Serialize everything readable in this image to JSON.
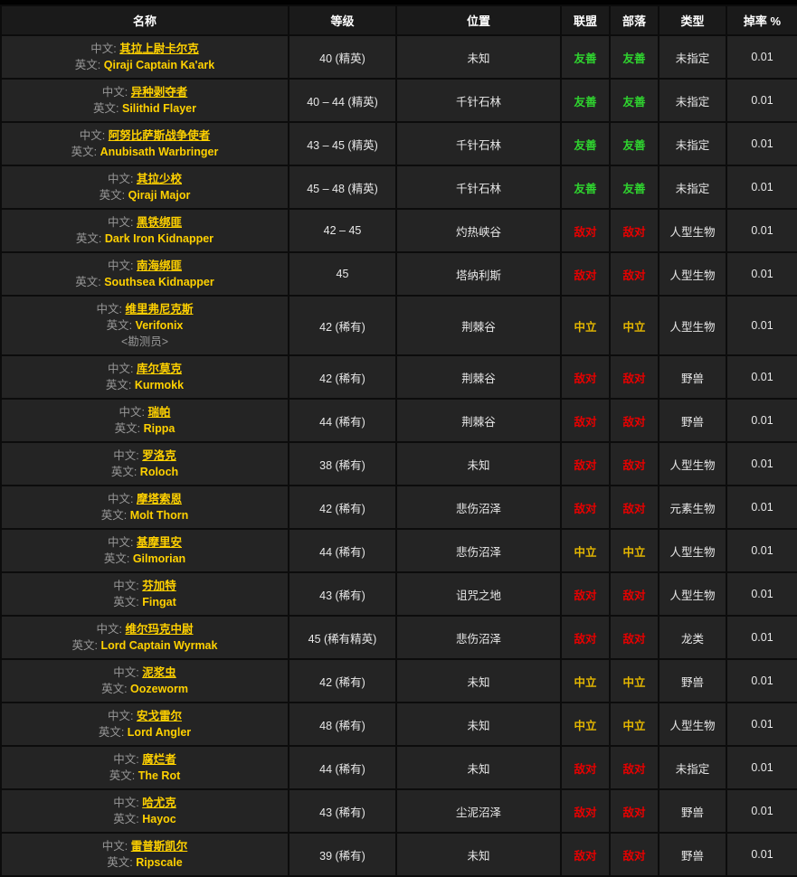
{
  "colors": {
    "link_gold": "#ffd100",
    "friendly_green": "#2fd42f",
    "hostile_red": "#e80000",
    "neutral_yellow": "#e6b800",
    "row_background": "#242424",
    "header_background": "#1a1a1a",
    "text_white": "#e8e8e8",
    "label_gray": "#989898"
  },
  "table": {
    "labels": {
      "cn": "中文:",
      "en": "英文:"
    },
    "columns": [
      {
        "id": "name",
        "label": "名称"
      },
      {
        "id": "level",
        "label": "等级"
      },
      {
        "id": "location",
        "label": "位置"
      },
      {
        "id": "alliance",
        "label": "联盟"
      },
      {
        "id": "horde",
        "label": "部落"
      },
      {
        "id": "type",
        "label": "类型"
      },
      {
        "id": "droprate",
        "label": "掉率 %"
      }
    ],
    "reaction_class": {
      "友善": "friendly",
      "敌对": "hostile",
      "中立": "neutral"
    },
    "rows": [
      {
        "cn": "其拉上尉卡尔克",
        "en": "Qiraji Captain Ka'ark",
        "sub": "",
        "level": "40 (精英)",
        "location": "未知",
        "alliance": "友善",
        "horde": "友善",
        "type": "未指定",
        "drop": "0.01"
      },
      {
        "cn": "异种剥夺者",
        "en": "Silithid Flayer",
        "sub": "",
        "level": "40 – 44 (精英)",
        "location": "千针石林",
        "alliance": "友善",
        "horde": "友善",
        "type": "未指定",
        "drop": "0.01"
      },
      {
        "cn": "阿努比萨斯战争使者",
        "en": "Anubisath Warbringer",
        "sub": "",
        "level": "43 – 45 (精英)",
        "location": "千针石林",
        "alliance": "友善",
        "horde": "友善",
        "type": "未指定",
        "drop": "0.01"
      },
      {
        "cn": "其拉少校",
        "en": "Qiraji Major",
        "sub": "",
        "level": "45 – 48 (精英)",
        "location": "千针石林",
        "alliance": "友善",
        "horde": "友善",
        "type": "未指定",
        "drop": "0.01"
      },
      {
        "cn": "黑铁绑匪",
        "en": "Dark Iron Kidnapper",
        "sub": "",
        "level": "42 – 45",
        "location": "灼热峡谷",
        "alliance": "敌对",
        "horde": "敌对",
        "type": "人型生物",
        "drop": "0.01"
      },
      {
        "cn": "南海绑匪",
        "en": "Southsea Kidnapper",
        "sub": "",
        "level": "45",
        "location": "塔纳利斯",
        "alliance": "敌对",
        "horde": "敌对",
        "type": "人型生物",
        "drop": "0.01"
      },
      {
        "cn": "维里弗尼克斯",
        "en": "Verifonix",
        "sub": "<勘测员>",
        "level": "42 (稀有)",
        "location": "荆棘谷",
        "alliance": "中立",
        "horde": "中立",
        "type": "人型生物",
        "drop": "0.01"
      },
      {
        "cn": "库尔莫克",
        "en": "Kurmokk",
        "sub": "",
        "level": "42 (稀有)",
        "location": "荆棘谷",
        "alliance": "敌对",
        "horde": "敌对",
        "type": "野兽",
        "drop": "0.01"
      },
      {
        "cn": "瑞帕",
        "en": "Rippa",
        "sub": "",
        "level": "44 (稀有)",
        "location": "荆棘谷",
        "alliance": "敌对",
        "horde": "敌对",
        "type": "野兽",
        "drop": "0.01"
      },
      {
        "cn": "罗洛克",
        "en": "Roloch",
        "sub": "",
        "level": "38 (稀有)",
        "location": "未知",
        "alliance": "敌对",
        "horde": "敌对",
        "type": "人型生物",
        "drop": "0.01"
      },
      {
        "cn": "摩塔索恩",
        "en": "Molt Thorn",
        "sub": "",
        "level": "42 (稀有)",
        "location": "悲伤沼泽",
        "alliance": "敌对",
        "horde": "敌对",
        "type": "元素生物",
        "drop": "0.01"
      },
      {
        "cn": "基摩里安",
        "en": "Gilmorian",
        "sub": "",
        "level": "44 (稀有)",
        "location": "悲伤沼泽",
        "alliance": "中立",
        "horde": "中立",
        "type": "人型生物",
        "drop": "0.01"
      },
      {
        "cn": "芬加特",
        "en": "Fingat",
        "sub": "",
        "level": "43 (稀有)",
        "location": "诅咒之地",
        "alliance": "敌对",
        "horde": "敌对",
        "type": "人型生物",
        "drop": "0.01"
      },
      {
        "cn": "维尔玛克中尉",
        "en": "Lord Captain Wyrmak",
        "sub": "",
        "level": "45 (稀有精英)",
        "location": "悲伤沼泽",
        "alliance": "敌对",
        "horde": "敌对",
        "type": "龙类",
        "drop": "0.01"
      },
      {
        "cn": "泥浆虫",
        "en": "Oozeworm",
        "sub": "",
        "level": "42 (稀有)",
        "location": "未知",
        "alliance": "中立",
        "horde": "中立",
        "type": "野兽",
        "drop": "0.01"
      },
      {
        "cn": "安戈雷尔",
        "en": "Lord Angler",
        "sub": "",
        "level": "48 (稀有)",
        "location": "未知",
        "alliance": "中立",
        "horde": "中立",
        "type": "人型生物",
        "drop": "0.01"
      },
      {
        "cn": "腐烂者",
        "en": "The Rot",
        "sub": "",
        "level": "44 (稀有)",
        "location": "未知",
        "alliance": "敌对",
        "horde": "敌对",
        "type": "未指定",
        "drop": "0.01"
      },
      {
        "cn": "哈尤克",
        "en": "Hayoc",
        "sub": "",
        "level": "43 (稀有)",
        "location": "尘泥沼泽",
        "alliance": "敌对",
        "horde": "敌对",
        "type": "野兽",
        "drop": "0.01"
      },
      {
        "cn": "雷普斯凯尔",
        "en": "Ripscale",
        "sub": "",
        "level": "39 (稀有)",
        "location": "未知",
        "alliance": "敌对",
        "horde": "敌对",
        "type": "野兽",
        "drop": "0.01"
      }
    ]
  }
}
